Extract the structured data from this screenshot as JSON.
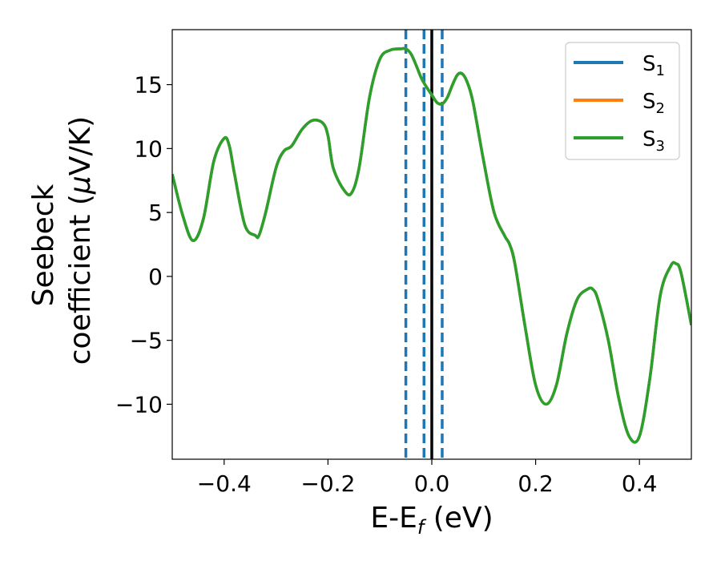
{
  "chart_data": {
    "type": "line",
    "xlabel": "E-E",
    "xlabel_sub": "f",
    "xlabel_unit": " (eV)",
    "ylabel_line1": "Seebeck",
    "ylabel_line2_pre": "coefficient  (",
    "ylabel_mu": "μ",
    "ylabel_line2_post": "V/K)",
    "xlim": [
      -0.5,
      0.5
    ],
    "ylim": [
      -14.3,
      19.3
    ],
    "xticks": [
      -0.4,
      -0.2,
      0.0,
      0.2,
      0.4
    ],
    "xtick_labels": [
      "−0.4",
      "−0.2",
      "0.0",
      "0.2",
      "0.4"
    ],
    "yticks": [
      -10,
      -5,
      0,
      5,
      10,
      15
    ],
    "ytick_labels": [
      "−10",
      "−5",
      "0",
      "5",
      "10",
      "15"
    ],
    "grid": false,
    "legend_position": "top-right",
    "x": [
      -0.5,
      -0.48,
      -0.46,
      -0.44,
      -0.42,
      -0.4,
      -0.39,
      -0.38,
      -0.36,
      -0.34,
      -0.333,
      -0.32,
      -0.3,
      -0.285,
      -0.27,
      -0.25,
      -0.23,
      -0.21,
      -0.2,
      -0.19,
      -0.17,
      -0.155,
      -0.14,
      -0.12,
      -0.1,
      -0.08,
      -0.06,
      -0.05,
      -0.04,
      -0.03,
      -0.02,
      -0.01,
      0.0,
      0.01,
      0.02,
      0.03,
      0.04,
      0.05,
      0.06,
      0.07,
      0.08,
      0.1,
      0.12,
      0.14,
      0.15,
      0.16,
      0.18,
      0.2,
      0.22,
      0.24,
      0.26,
      0.28,
      0.3,
      0.31,
      0.32,
      0.34,
      0.36,
      0.38,
      0.4,
      0.42,
      0.44,
      0.46,
      0.47,
      0.48,
      0.5
    ],
    "series": [
      {
        "name": "S",
        "sub": "1",
        "color": "#1f77b4",
        "values": [
          8.0,
          4.8,
          2.8,
          4.5,
          9.0,
          10.8,
          10.2,
          8.0,
          4.0,
          3.2,
          3.2,
          5.0,
          8.5,
          9.8,
          10.2,
          11.5,
          12.2,
          12.0,
          11.0,
          8.5,
          6.8,
          6.5,
          8.5,
          14.0,
          17.0,
          17.7,
          17.8,
          17.8,
          17.4,
          16.5,
          15.5,
          14.8,
          14.2,
          13.6,
          13.5,
          14.0,
          15.0,
          15.8,
          15.8,
          15.0,
          13.5,
          9.0,
          5.0,
          3.2,
          2.5,
          1.0,
          -4.0,
          -8.5,
          -10.0,
          -8.5,
          -4.5,
          -1.8,
          -1.0,
          -1.0,
          -1.8,
          -5.0,
          -9.5,
          -12.5,
          -12.5,
          -8.0,
          -1.5,
          0.8,
          1.0,
          0.3,
          -3.8
        ]
      },
      {
        "name": "S",
        "sub": "2",
        "color": "#ff7f0e",
        "values": [
          8.0,
          4.8,
          2.8,
          4.5,
          9.0,
          10.8,
          10.2,
          8.0,
          4.0,
          3.2,
          3.2,
          5.0,
          8.5,
          9.8,
          10.2,
          11.5,
          12.2,
          12.0,
          11.0,
          8.5,
          6.8,
          6.5,
          8.5,
          14.0,
          17.0,
          17.7,
          17.8,
          17.8,
          17.4,
          16.5,
          15.5,
          14.8,
          14.2,
          13.6,
          13.5,
          14.0,
          15.0,
          15.8,
          15.8,
          15.0,
          13.5,
          9.0,
          5.0,
          3.2,
          2.5,
          1.0,
          -4.0,
          -8.5,
          -10.0,
          -8.5,
          -4.5,
          -1.8,
          -1.0,
          -1.0,
          -1.8,
          -5.0,
          -9.5,
          -12.5,
          -12.5,
          -8.0,
          -1.5,
          0.8,
          1.0,
          0.3,
          -3.8
        ]
      },
      {
        "name": "S",
        "sub": "3",
        "color": "#2ca02c",
        "values": [
          8.0,
          4.8,
          2.8,
          4.5,
          9.0,
          10.8,
          10.2,
          8.0,
          4.0,
          3.2,
          3.2,
          5.0,
          8.5,
          9.8,
          10.2,
          11.5,
          12.2,
          12.0,
          11.0,
          8.5,
          6.8,
          6.5,
          8.5,
          14.0,
          17.0,
          17.7,
          17.8,
          17.8,
          17.4,
          16.5,
          15.5,
          14.8,
          14.2,
          13.6,
          13.5,
          14.0,
          15.0,
          15.8,
          15.8,
          15.0,
          13.5,
          9.0,
          5.0,
          3.2,
          2.5,
          1.0,
          -4.0,
          -8.5,
          -10.0,
          -8.5,
          -4.5,
          -1.8,
          -1.0,
          -1.0,
          -1.8,
          -5.0,
          -9.5,
          -12.5,
          -12.5,
          -8.0,
          -1.5,
          0.8,
          1.0,
          0.3,
          -3.8
        ]
      }
    ],
    "vlines": [
      {
        "x": -0.05,
        "style": "dashed",
        "color": "#1f77b4"
      },
      {
        "x": -0.015,
        "style": "dashed",
        "color": "#1f77b4"
      },
      {
        "x": 0.0,
        "style": "solid",
        "color": "#000000"
      },
      {
        "x": 0.02,
        "style": "dashed",
        "color": "#1f77b4"
      }
    ]
  }
}
